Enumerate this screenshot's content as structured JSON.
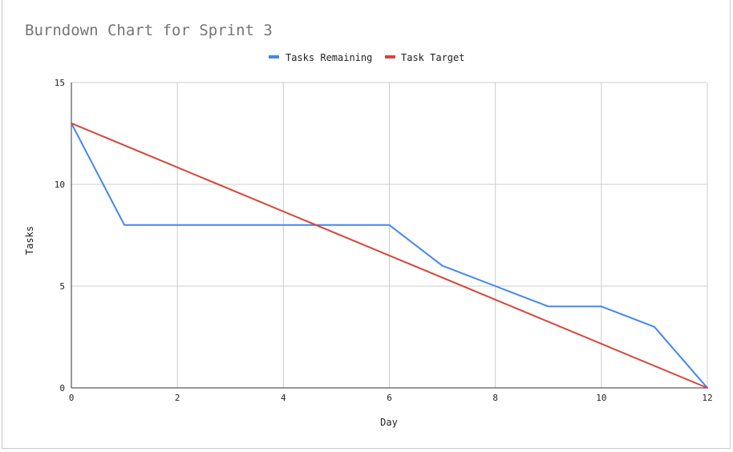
{
  "chart_data": {
    "type": "line",
    "title": "Burndown Chart for Sprint 3",
    "xlabel": "Day",
    "ylabel": "Tasks",
    "xlim": [
      0,
      12
    ],
    "ylim": [
      0,
      15
    ],
    "xticks": [
      "0",
      "2",
      "4",
      "6",
      "8",
      "10",
      "12"
    ],
    "yticks": [
      "0",
      "5",
      "10",
      "15"
    ],
    "grid": true,
    "legend_position": "top",
    "series": [
      {
        "name": "Tasks Remaining",
        "color": "#4285f4",
        "x": [
          0,
          1,
          2,
          3,
          4,
          5,
          6,
          7,
          8,
          9,
          10,
          11,
          12
        ],
        "y": [
          13,
          8,
          8,
          8,
          8,
          8,
          8,
          6,
          5,
          4,
          4,
          3,
          0
        ]
      },
      {
        "name": "Task Target",
        "color": "#db4437",
        "x": [
          0,
          12
        ],
        "y": [
          13,
          0
        ]
      }
    ]
  }
}
